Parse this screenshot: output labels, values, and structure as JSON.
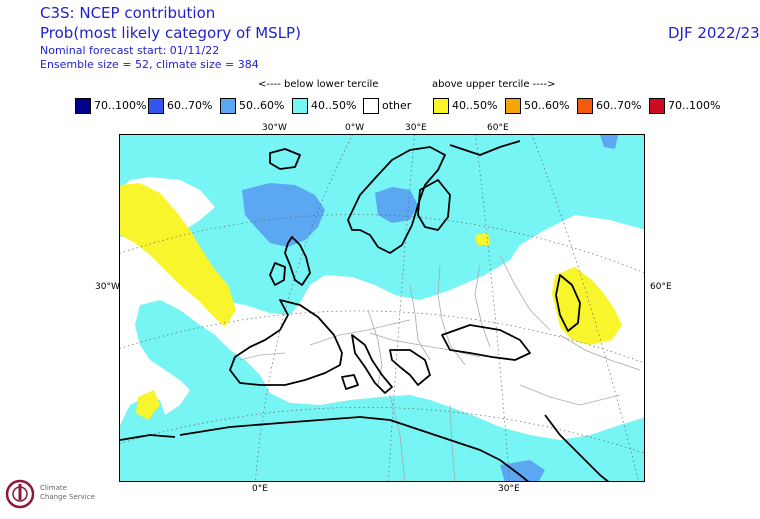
{
  "header": {
    "title_line1": "C3S: NCEP contribution",
    "title_line2": "Prob(most likely category of MSLP)",
    "subtitle_line1": "Nominal forecast start: 01/11/22",
    "subtitle_line2": "Ensemble size = 52, climate size = 384",
    "season": "DJF 2022/23"
  },
  "legend": {
    "below_label": "<---- below lower tercile",
    "above_label": "above upper tercile ---->",
    "items": [
      {
        "label": "70..100%",
        "color": "#00008c"
      },
      {
        "label": "60..70%",
        "color": "#3355ee"
      },
      {
        "label": "50..60%",
        "color": "#5ca7f2"
      },
      {
        "label": "40..50%",
        "color": "#77f4f4"
      },
      {
        "label": "other",
        "color": "#ffffff"
      },
      {
        "label": "40..50%",
        "color": "#f8f52c"
      },
      {
        "label": "50..60%",
        "color": "#f5a50a"
      },
      {
        "label": "60..70%",
        "color": "#f25a10"
      },
      {
        "label": "70..100%",
        "color": "#cc0a22"
      }
    ]
  },
  "axis_labels": {
    "top": [
      "30°W",
      "0°W",
      "30°E",
      "60°E"
    ],
    "left": "30°W",
    "right": "60°E",
    "bottom": [
      "0°E",
      "30°E"
    ]
  },
  "logo": {
    "text_line1": "Climate",
    "text_line2": "Change Service"
  },
  "colors": {
    "text_blue": "#2222cc",
    "coast": "#000000",
    "border": "#aaaaaa",
    "grid": "#666666"
  }
}
